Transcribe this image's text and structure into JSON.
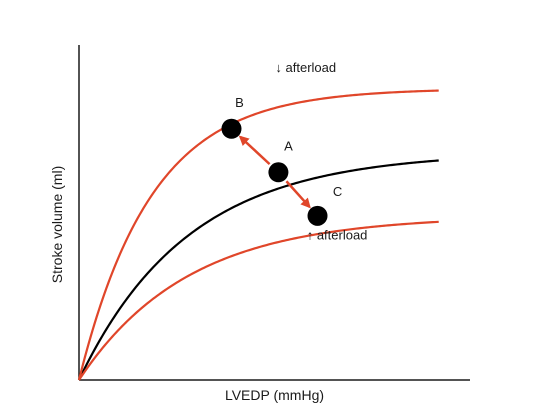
{
  "colors": {
    "axis": "#1a1a1a",
    "baseline_curve": "#000000",
    "afterload_curves": "#e0462a",
    "arrows": "#e0462a",
    "points": "#000000"
  },
  "chart_data": {
    "type": "line",
    "title": "",
    "xlabel": "LVEDP (mmHg)",
    "ylabel": "Stroke volume (ml)",
    "xlim": [
      0,
      100
    ],
    "ylim": [
      0,
      100
    ],
    "ticks_shown": false,
    "grid": false,
    "series": [
      {
        "role": "baseline",
        "color": "black",
        "plateau": 68,
        "rate": 3.6
      },
      {
        "role": "decreased-afterload",
        "color": "red",
        "plateau": 87,
        "rate": 5.4
      },
      {
        "role": "increased-afterload",
        "color": "red",
        "plateau": 49,
        "rate": 3.6
      }
    ],
    "points": [
      {
        "label": "A",
        "x": 51,
        "y": 62
      },
      {
        "label": "B",
        "x": 39,
        "y": 75
      },
      {
        "label": "C",
        "x": 61,
        "y": 49
      }
    ],
    "arrows": [
      {
        "from": "A",
        "to": "B"
      },
      {
        "from": "A",
        "to": "C"
      }
    ],
    "annotations": [
      {
        "text": "↓ afterload",
        "x": 58,
        "y": 92
      },
      {
        "text": "↑ afterload",
        "x": 66,
        "y": 42
      }
    ]
  }
}
